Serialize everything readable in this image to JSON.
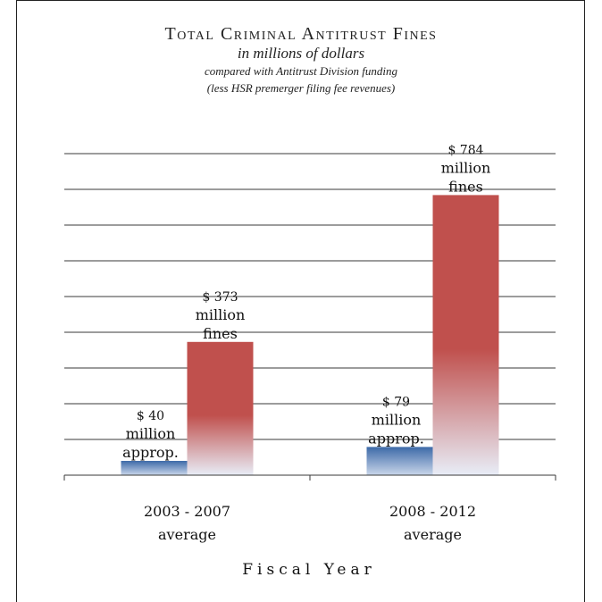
{
  "chart_data": {
    "type": "bar",
    "title": "Total Criminal Antitrust Fines",
    "subtitle": "in millions of dollars",
    "note_line1": "compared with Antitrust Division funding",
    "note_line2": "(less HSR premerger filing fee revenues)",
    "xlabel": "Fiscal Year",
    "ylabel": "",
    "ylim": [
      0,
      900
    ],
    "grid": true,
    "categories": [
      {
        "line1": "2003 - 2007",
        "line2": "average"
      },
      {
        "line1": "2008 - 2012",
        "line2": "average"
      }
    ],
    "series": [
      {
        "name": "appropriations",
        "values": [
          40,
          79
        ],
        "color": "#3d6aa8",
        "labels": [
          {
            "line1": "$ 40",
            "line2": "million",
            "line3": "approp."
          },
          {
            "line1": "$ 79",
            "line2": "million",
            "line3": "approp."
          }
        ]
      },
      {
        "name": "fines",
        "values": [
          373,
          784
        ],
        "color": "#c0504d",
        "labels": [
          {
            "line1": "$ 373",
            "line2": "million",
            "line3": "fines"
          },
          {
            "line1": "$ 784",
            "line2": "million",
            "line3": "fines"
          }
        ]
      }
    ]
  }
}
